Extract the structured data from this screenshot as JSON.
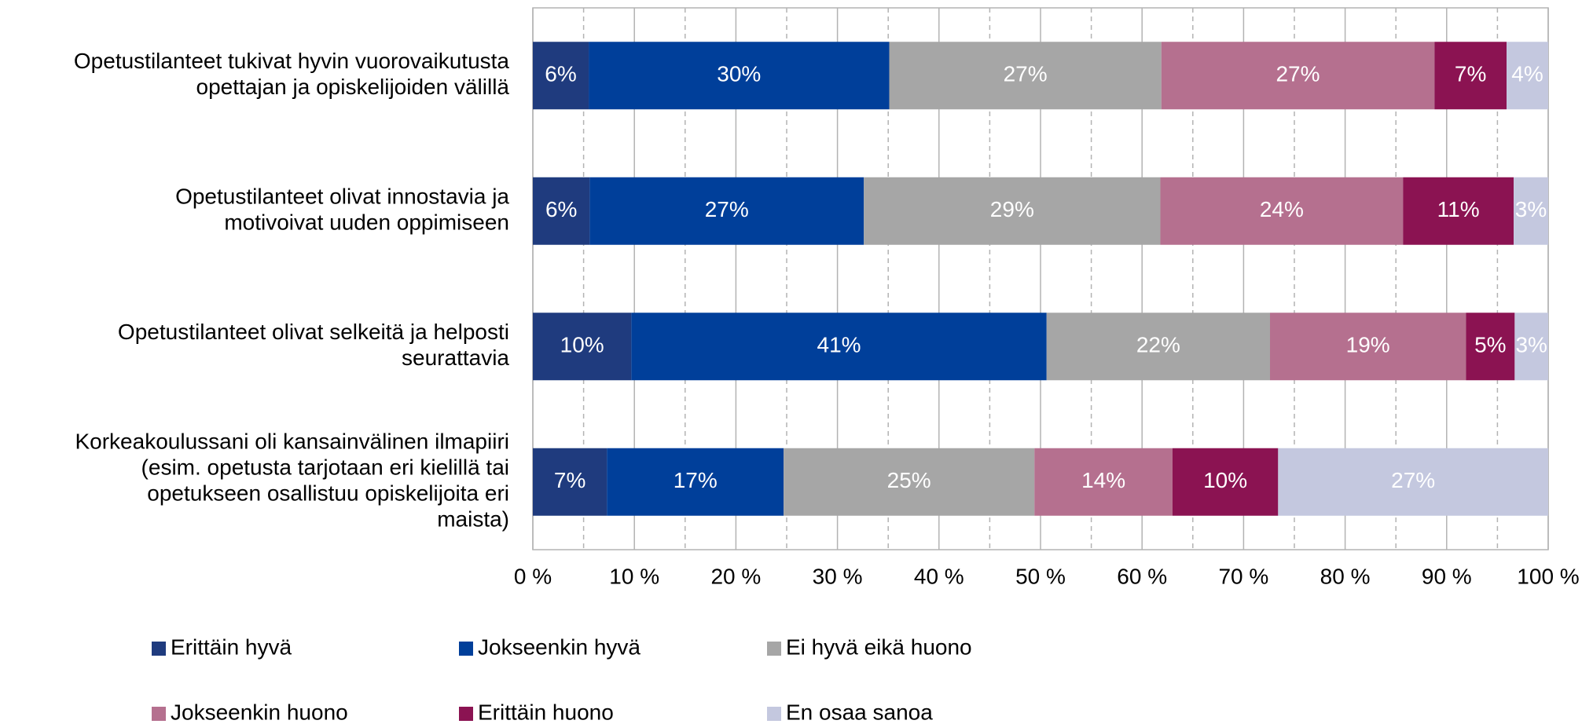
{
  "chart_data": {
    "type": "stacked_bar_horizontal",
    "categories": [
      "Opetustilanteet tukivat hyvin vuorovaikutusta\nopettajan ja opiskelijoiden välillä",
      "Opetustilanteet olivat innostavia ja\nmotivoivat uuden oppimiseen",
      "Opetustilanteet olivat selkeitä ja helposti\nseurattavia",
      "Korkeakoulussani oli kansainvälinen ilmapiiri\n(esim. opetusta tarjotaan eri kielillä tai\nopetukseen osallistuu opiskelijoita eri\nmaista)"
    ],
    "series": [
      {
        "name": "Erittäin hyvä",
        "color": "#1f3b7e",
        "values": [
          5.5,
          5.6,
          9.7,
          7.3
        ],
        "value_labels": [
          "6%",
          "6%",
          "10%",
          "7%"
        ]
      },
      {
        "name": "Jokseenkin hyvä",
        "color": "#003f9a",
        "values": [
          29.6,
          27.0,
          40.9,
          17.4
        ],
        "value_labels": [
          "30%",
          "27%",
          "41%",
          "17%"
        ]
      },
      {
        "name": "Ei hyvä eikä huono",
        "color": "#a6a6a6",
        "values": [
          26.8,
          29.2,
          22.0,
          24.7
        ],
        "value_labels": [
          "27%",
          "29%",
          "22%",
          "25%"
        ]
      },
      {
        "name": "Jokseenkin huono",
        "color": "#b5708f",
        "values": [
          26.9,
          23.9,
          19.3,
          13.6
        ],
        "value_labels": [
          "27%",
          "24%",
          "19%",
          "14%"
        ]
      },
      {
        "name": "Erittäin huono",
        "color": "#8b1352",
        "values": [
          7.1,
          10.9,
          4.8,
          10.4
        ],
        "value_labels": [
          "7%",
          "11%",
          "5%",
          "10%"
        ]
      },
      {
        "name": "En osaa sanoa",
        "color": "#c4c8df",
        "values": [
          4.1,
          3.4,
          3.3,
          26.6
        ],
        "value_labels": [
          "4%",
          "3%",
          "3%",
          "27%"
        ]
      }
    ],
    "xlim": [
      0,
      100
    ],
    "xticks": [
      {
        "value": 0,
        "label": "0 %"
      },
      {
        "value": 10,
        "label": "10 %"
      },
      {
        "value": 20,
        "label": "20 %"
      },
      {
        "value": 30,
        "label": "30 %"
      },
      {
        "value": 40,
        "label": "40 %"
      },
      {
        "value": 50,
        "label": "50 %"
      },
      {
        "value": 60,
        "label": "60 %"
      },
      {
        "value": 70,
        "label": "70 %"
      },
      {
        "value": 80,
        "label": "80 %"
      },
      {
        "value": 90,
        "label": "90 %"
      },
      {
        "value": 100,
        "label": "100 %"
      }
    ],
    "grid": true,
    "legend": "bottom"
  }
}
